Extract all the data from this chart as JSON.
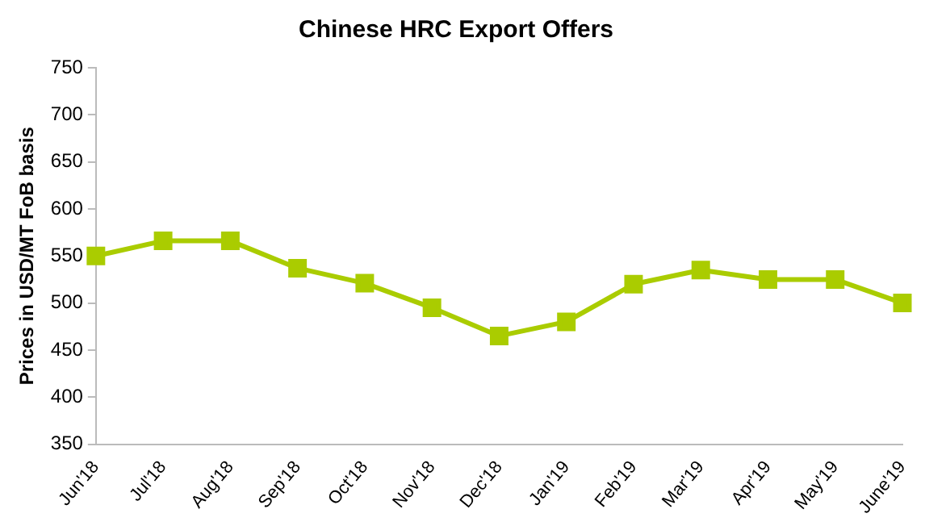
{
  "chart_data": {
    "type": "line",
    "title": "Chinese HRC Export Offers",
    "ylabel": "Prices in USD/MT FoB basis",
    "categories": [
      "Jun'18",
      "Jul'18",
      "Aug'18",
      "Sep'18",
      "Oct'18",
      "Nov'18",
      "Dec'18",
      "Jan'19",
      "Feb'19",
      "Mar'19",
      "Apr'19",
      "May'19",
      "June'19"
    ],
    "series": [
      {
        "color": "#aacc00",
        "values": [
          550,
          566,
          566,
          537,
          521,
          495,
          465,
          480,
          520,
          535,
          525,
          525,
          500
        ]
      }
    ],
    "ylim": [
      350,
      750
    ],
    "yticks": [
      350,
      400,
      450,
      500,
      550,
      600,
      650,
      700,
      750
    ],
    "grid": false,
    "legend": false,
    "marker": "square",
    "line_style": "solid"
  }
}
